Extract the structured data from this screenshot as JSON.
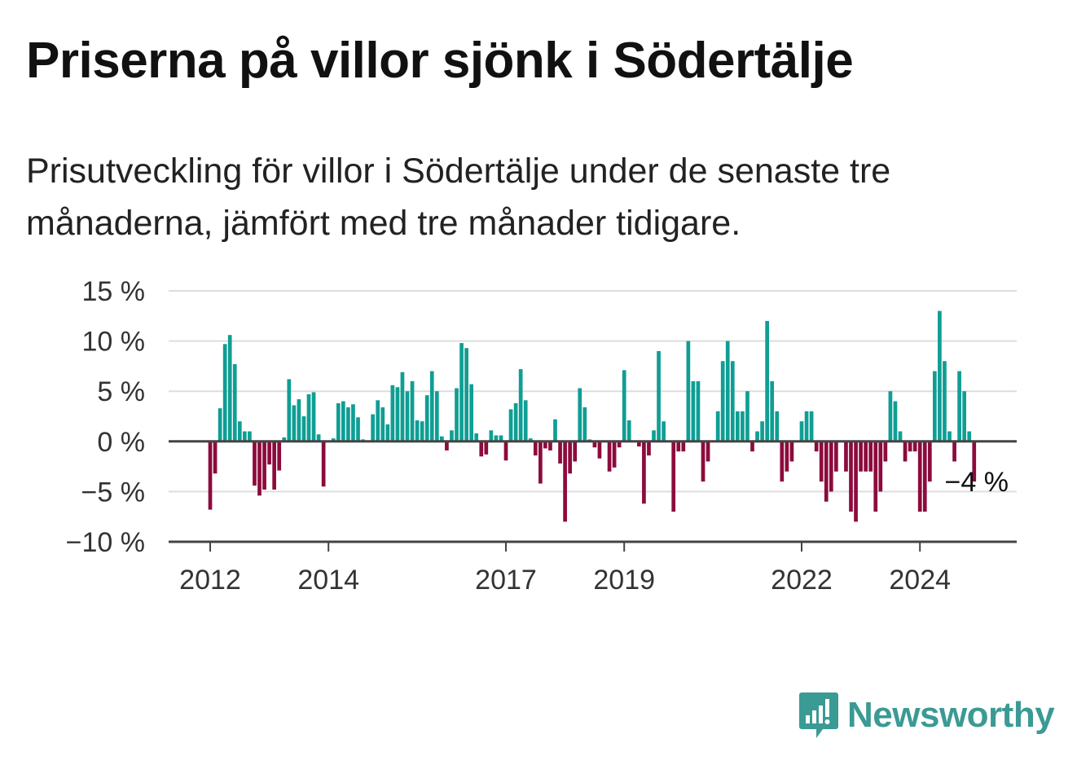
{
  "title": "Priserna på villor sjönk i Södertälje",
  "subtitle": "Prisutveckling för villor i Södertälje under de senaste tre månaderna, jämfört med tre månader tidigare.",
  "brand": {
    "name": "Newsworthy",
    "icon": "newsworthy-logo-icon",
    "color": "#3a9a94"
  },
  "colors": {
    "positive": "#0f9e94",
    "negative": "#8c0b3d",
    "grid": "#dddddd",
    "axis": "#444444"
  },
  "chart_data": {
    "type": "bar",
    "title": "",
    "xlabel": "",
    "ylabel": "",
    "ylim": [
      -10,
      15
    ],
    "y_ticks": [
      {
        "value": 15,
        "label": "15 %"
      },
      {
        "value": 10,
        "label": "10 %"
      },
      {
        "value": 5,
        "label": "5 %"
      },
      {
        "value": 0,
        "label": "0 %"
      },
      {
        "value": -5,
        "label": "−5 %"
      },
      {
        "value": -10,
        "label": "−10 %"
      }
    ],
    "x_start": "2012-01",
    "x_ticks": [
      {
        "date": "2012-01",
        "label": "2012"
      },
      {
        "date": "2014-01",
        "label": "2014"
      },
      {
        "date": "2017-01",
        "label": "2017"
      },
      {
        "date": "2019-01",
        "label": "2019"
      },
      {
        "date": "2022-01",
        "label": "2022"
      },
      {
        "date": "2024-01",
        "label": "2024"
      }
    ],
    "grid": true,
    "end_label": "−4 %",
    "values": [
      -6.8,
      -3.2,
      3.3,
      9.7,
      10.6,
      7.7,
      2.0,
      1.0,
      1.0,
      -4.4,
      -5.4,
      -4.8,
      -2.3,
      -4.8,
      -2.9,
      0.4,
      6.2,
      3.6,
      4.2,
      2.5,
      4.7,
      4.9,
      0.7,
      -4.5,
      0.0,
      0.3,
      3.8,
      4.0,
      3.4,
      3.7,
      2.4,
      0.2,
      0.0,
      2.7,
      4.1,
      3.4,
      1.7,
      5.6,
      5.4,
      6.9,
      5.0,
      6.0,
      2.1,
      2.0,
      4.6,
      7.0,
      5.0,
      0.5,
      -0.9,
      1.1,
      5.3,
      9.8,
      9.3,
      5.7,
      0.8,
      -1.5,
      -1.3,
      1.1,
      0.6,
      0.6,
      -1.9,
      3.2,
      3.8,
      7.2,
      4.1,
      0.3,
      -1.4,
      -4.2,
      -0.7,
      -0.9,
      2.2,
      -2.2,
      -8.0,
      -3.2,
      -2.0,
      5.3,
      3.4,
      0.2,
      -0.6,
      -1.7,
      0.0,
      -3.0,
      -2.6,
      -0.6,
      7.1,
      2.1,
      0.0,
      -0.5,
      -6.2,
      -1.4,
      1.1,
      9.0,
      2.0,
      0.0,
      -7.0,
      -1.0,
      -1.0,
      10.0,
      6.0,
      6.0,
      -4.0,
      -2.0,
      0.0,
      3.0,
      8.0,
      10.0,
      8.0,
      3.0,
      3.0,
      5.0,
      -1.0,
      1.0,
      2.0,
      12.0,
      6.0,
      3.0,
      -4.0,
      -3.0,
      -2.0,
      0.0,
      2.0,
      3.0,
      3.0,
      -1.0,
      -4.0,
      -6.0,
      -5.0,
      -3.0,
      0.0,
      -3.0,
      -7.0,
      -8.0,
      -3.0,
      -3.0,
      -3.0,
      -7.0,
      -5.0,
      -2.0,
      5.0,
      4.0,
      1.0,
      -2.0,
      -1.0,
      -1.0,
      -7.0,
      -7.0,
      -4.0,
      7.0,
      13.0,
      8.0,
      1.0,
      -2.0,
      7.0,
      5.0,
      1.0,
      -4.0
    ]
  }
}
